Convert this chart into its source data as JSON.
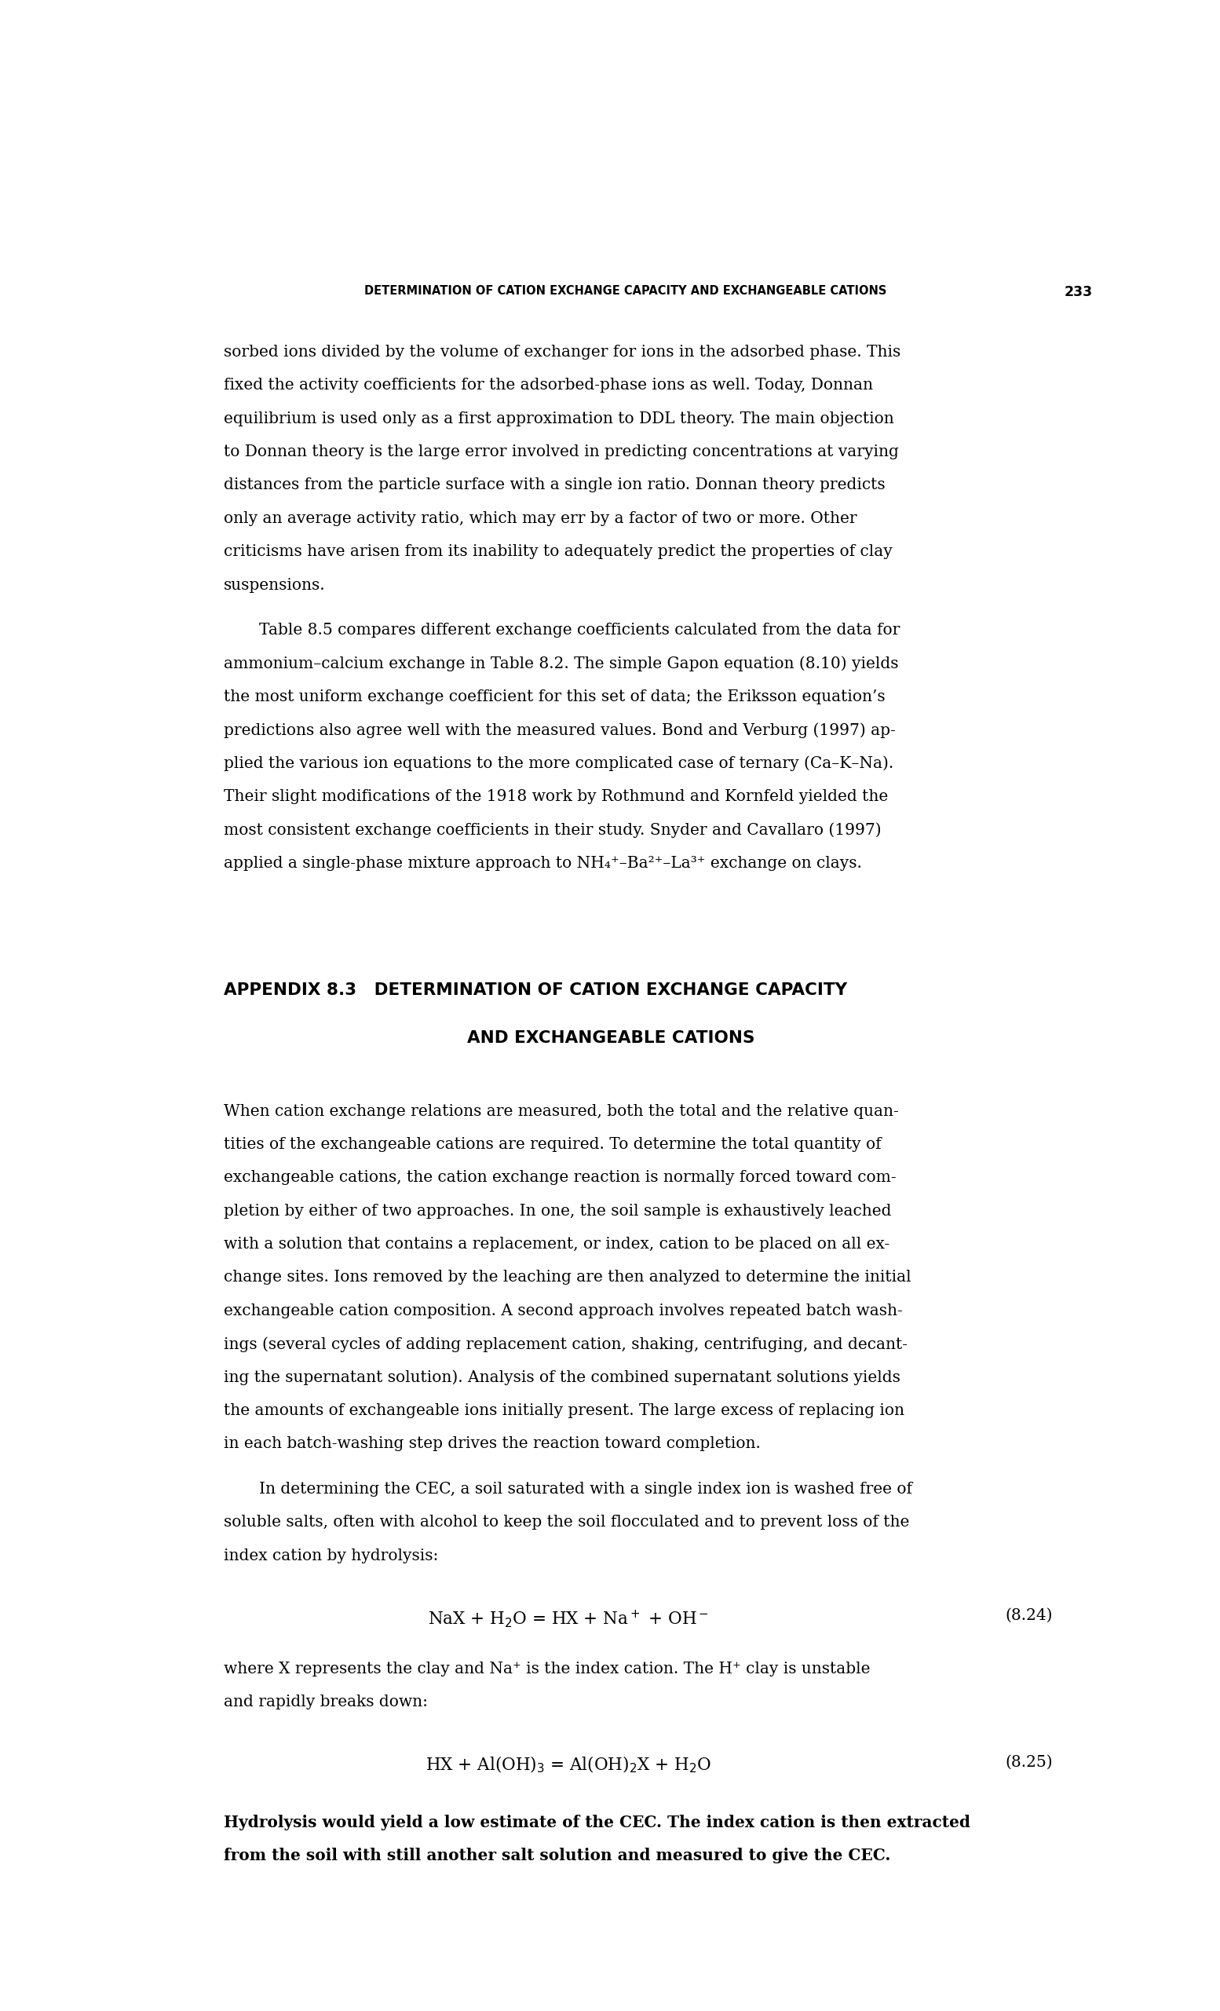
{
  "page_width": 15.54,
  "page_height": 25.61,
  "background_color": "#ffffff",
  "header_text": "DETERMINATION OF CATION EXCHANGE CAPACITY AND EXCHANGEABLE CATIONS",
  "header_page_num": "233",
  "para1_lines": [
    "sorbed ions divided by the volume of exchanger for ions in the adsorbed phase. This",
    "fixed the activity coefficients for the adsorbed-phase ions as well. Today, Donnan",
    "equilibrium is used only as a first approximation to DDL theory. The main objection",
    "to Donnan theory is the large error involved in predicting concentrations at varying",
    "distances from the particle surface with a single ion ratio. Donnan theory predicts",
    "only an average activity ratio, which may err by a factor of two or more. Other",
    "criticisms have arisen from its inability to adequately predict the properties of clay",
    "suspensions."
  ],
  "para2_lines": [
    "Table 8.5 compares different exchange coefficients calculated from the data for",
    "ammonium–calcium exchange in Table 8.2. The simple Gapon equation (8.10) yields",
    "the most uniform exchange coefficient for this set of data; the Eriksson equation’s",
    "predictions also agree well with the measured values. Bond and Verburg (1997) ap-",
    "plied the various ion equations to the more complicated case of ternary (Ca–K–Na).",
    "Their slight modifications of the 1918 work by Rothmund and Kornfeld yielded the",
    "most consistent exchange coefficients in their study. Snyder and Cavallaro (1997)",
    "applied a single-phase mixture approach to NH₄⁺–Ba²⁺–La³⁺ exchange on clays."
  ],
  "appendix_line1": "APPENDIX 8.3   DETERMINATION OF CATION EXCHANGE CAPACITY",
  "appendix_line2": "AND EXCHANGEABLE CATIONS",
  "para3_lines": [
    "When cation exchange relations are measured, both the total and the relative quan-",
    "tities of the exchangeable cations are required. To determine the total quantity of",
    "exchangeable cations, the cation exchange reaction is normally forced toward com-",
    "pletion by either of two approaches. In one, the soil sample is exhaustively leached",
    "with a solution that contains a replacement, or index, cation to be placed on all ex-",
    "change sites. Ions removed by the leaching are then analyzed to determine the initial",
    "exchangeable cation composition. A second approach involves repeated batch wash-",
    "ings (several cycles of adding replacement cation, shaking, centrifuging, and decant-",
    "ing the supernatant solution). Analysis of the combined supernatant solutions yields",
    "the amounts of exchangeable ions initially present. The large excess of replacing ion",
    "in each batch-washing step drives the reaction toward completion."
  ],
  "para4_lines": [
    "In determining the CEC, a soil saturated with a single index ion is washed free of",
    "soluble salts, often with alcohol to keep the soil flocculated and to prevent loss of the",
    "index cation by hydrolysis:"
  ],
  "eq1_left": "NaX + H",
  "eq1_sub1": "2",
  "eq1_mid": "O = HX + Na",
  "eq1_sup1": "+",
  "eq1_right": " + OH",
  "eq1_sup2": "−",
  "eq1_num": "(8.24)",
  "note1_lines": [
    "where X represents the clay and Na⁺ is the index cation. The H⁺ clay is unstable",
    "and rapidly breaks down:"
  ],
  "eq2_left": "HX + Al(OH)",
  "eq2_sub1": "3",
  "eq2_mid": " = Al(OH)",
  "eq2_sub2": "2",
  "eq2_right": "X + H",
  "eq2_sub3": "2",
  "eq2_end": "O",
  "eq2_num": "(8.25)",
  "note2_lines": [
    "Hydrolysis would yield a low estimate of the CEC. The index cation is then extracted",
    "from the soil with still another salt solution and measured to give the CEC."
  ]
}
